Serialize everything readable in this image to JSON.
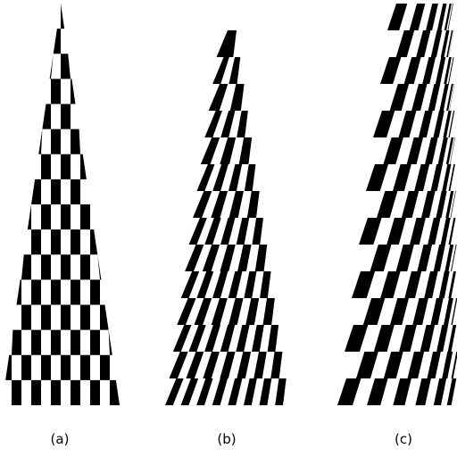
{
  "colors": {
    "ink": "#000000",
    "paper": "#ffffff"
  },
  "panels": [
    {
      "caption": "(a)",
      "pattern": "checkerboard",
      "tilt": "none",
      "column_density": "uniform"
    },
    {
      "caption": "(b)",
      "pattern": "checkerboard",
      "tilt": "sheared",
      "column_density": "uniform"
    },
    {
      "caption": "(c)",
      "pattern": "checkerboard",
      "tilt": "sheared",
      "column_density": "increasing-toward-top-right"
    }
  ]
}
